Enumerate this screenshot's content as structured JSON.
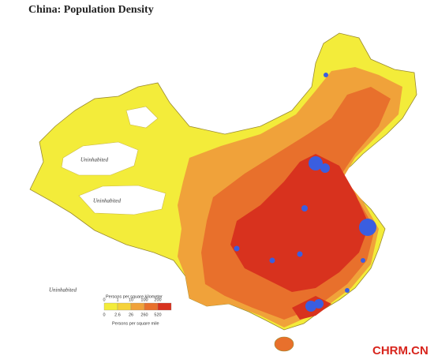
{
  "title": "China: Population Density",
  "areas": [
    {
      "label": "Uninhabited"
    },
    {
      "label": "Uninhabited"
    },
    {
      "label": "Uninhabited"
    }
  ],
  "legend": {
    "title_top": "Persons per square kilometer",
    "top_values": [
      0,
      1,
      10,
      100,
      200
    ],
    "bottom_values": [
      0,
      2.6,
      26,
      260,
      520
    ],
    "title_bottom": "Persons per square mile"
  },
  "watermark": "CHRM.CN"
}
